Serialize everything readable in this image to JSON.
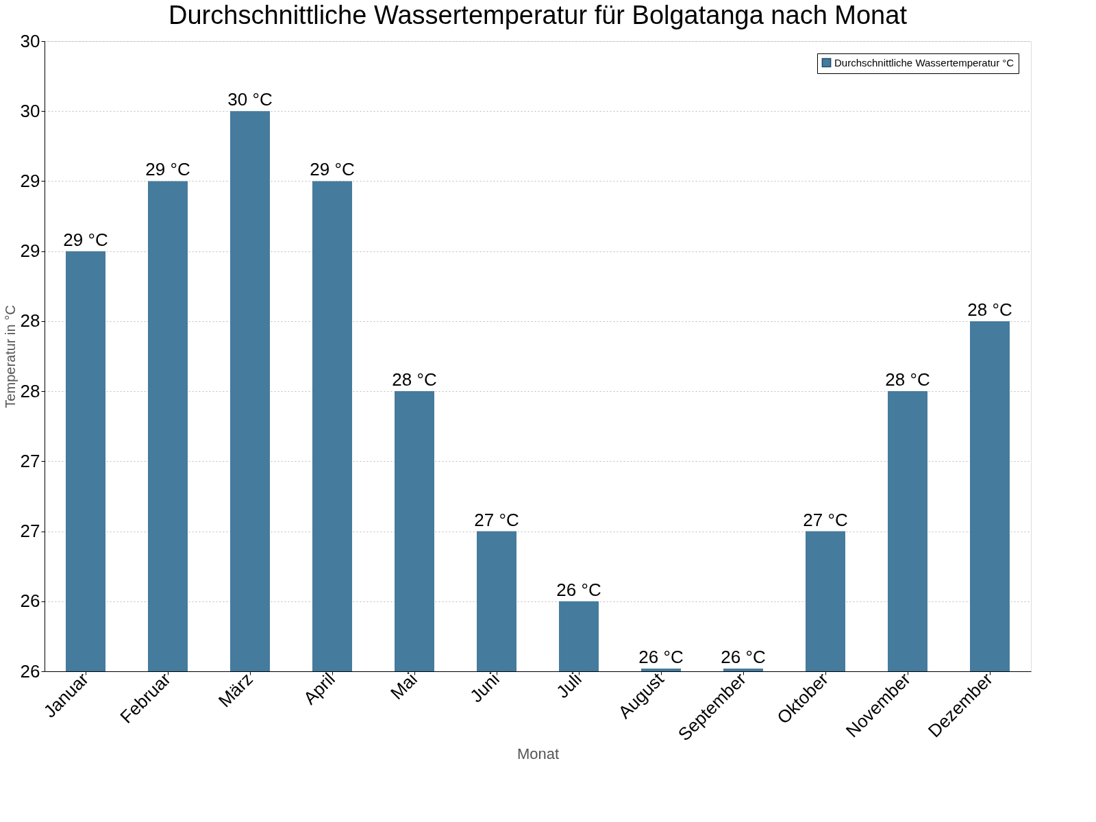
{
  "chart_data": {
    "type": "bar",
    "title": "Durchschnittliche Wassertemperatur für Bolgatanga nach Monat",
    "xlabel": "Monat",
    "ylabel": "Temperatur in °C",
    "categories": [
      "Januar",
      "Februar",
      "März",
      "April",
      "Mai",
      "Juni",
      "Juli",
      "August",
      "September",
      "Oktober",
      "November",
      "Dezember"
    ],
    "series": [
      {
        "name": "Durchschnittliche Wassertemperatur °C",
        "color": "#457b9d",
        "values": [
          28.8,
          29.3,
          29.8,
          29.3,
          27.8,
          26.8,
          26.3,
          25.82,
          25.82,
          26.8,
          27.8,
          28.3
        ],
        "value_labels": [
          "29 °C",
          "29 °C",
          "30 °C",
          "29 °C",
          "28 °C",
          "27 °C",
          "26 °C",
          "26 °C",
          "26 °C",
          "27 °C",
          "28 °C",
          "28 °C"
        ]
      }
    ],
    "ylim": [
      25.8,
      30.3
    ],
    "yticks": [
      {
        "value": 25.8,
        "label": "26"
      },
      {
        "value": 26.3,
        "label": "26"
      },
      {
        "value": 26.8,
        "label": "27"
      },
      {
        "value": 27.3,
        "label": "27"
      },
      {
        "value": 27.8,
        "label": "28"
      },
      {
        "value": 28.3,
        "label": "28"
      },
      {
        "value": 28.8,
        "label": "29"
      },
      {
        "value": 29.3,
        "label": "29"
      },
      {
        "value": 29.8,
        "label": "30"
      },
      {
        "value": 30.3,
        "label": "30"
      }
    ],
    "grid": "y",
    "legend": "top right"
  }
}
